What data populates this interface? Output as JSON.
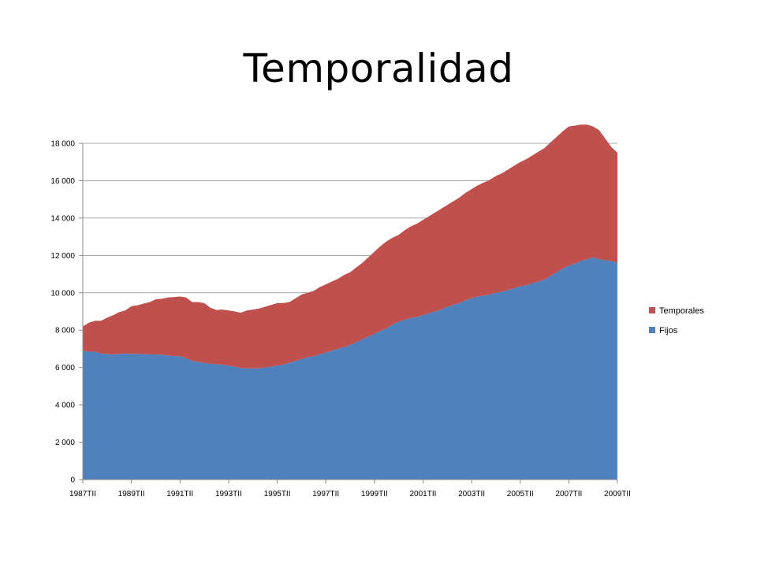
{
  "slide": {
    "title": "Temporalidad"
  },
  "chart_data": {
    "type": "area",
    "stacked": true,
    "grid": true,
    "legend_position": "right",
    "ylim": [
      0,
      18000
    ],
    "yticks": [
      0,
      2000,
      4000,
      6000,
      8000,
      10000,
      12000,
      14000,
      16000,
      18000
    ],
    "ytick_labels": [
      "0",
      "2 000",
      "4 000",
      "6 000",
      "8 000",
      "10 000",
      "12 000",
      "14 000",
      "16 000",
      "18 000"
    ],
    "xtick_labels": [
      "1987TII",
      "1989TII",
      "1991TII",
      "1993TII",
      "1995TII",
      "1997TII",
      "1999TII",
      "2001TII",
      "2003TII",
      "2005TII",
      "2007TII",
      "2009TII"
    ],
    "x": [
      "1987TII",
      "1987TIII",
      "1987TIV",
      "1988TI",
      "1988TII",
      "1988TIII",
      "1988TIV",
      "1989TI",
      "1989TII",
      "1989TIII",
      "1989TIV",
      "1990TI",
      "1990TII",
      "1990TIII",
      "1990TIV",
      "1991TI",
      "1991TII",
      "1991TIII",
      "1991TIV",
      "1992TI",
      "1992TII",
      "1992TIII",
      "1992TIV",
      "1993TI",
      "1993TII",
      "1993TIII",
      "1993TIV",
      "1994TI",
      "1994TII",
      "1994TIII",
      "1994TIV",
      "1995TI",
      "1995TII",
      "1995TIII",
      "1995TIV",
      "1996TI",
      "1996TII",
      "1996TIII",
      "1996TIV",
      "1997TI",
      "1997TII",
      "1997TIII",
      "1997TIV",
      "1998TI",
      "1998TII",
      "1998TIII",
      "1998TIV",
      "1999TI",
      "1999TII",
      "1999TIII",
      "1999TIV",
      "2000TI",
      "2000TII",
      "2000TIII",
      "2000TIV",
      "2001TI",
      "2001TII",
      "2001TIII",
      "2001TIV",
      "2002TI",
      "2002TII",
      "2002TIII",
      "2002TIV",
      "2003TI",
      "2003TII",
      "2003TIII",
      "2003TIV",
      "2004TI",
      "2004TII",
      "2004TIII",
      "2004TIV",
      "2005TI",
      "2005TII",
      "2005TIII",
      "2005TIV",
      "2006TI",
      "2006TII",
      "2006TIII",
      "2006TIV",
      "2007TI",
      "2007TII",
      "2007TIII",
      "2007TIV",
      "2008TI",
      "2008TII",
      "2008TIII",
      "2008TIV",
      "2009TI",
      "2009TII"
    ],
    "series": [
      {
        "name": "Fijos",
        "color": "#4F81BD",
        "values": [
          6900,
          6850,
          6850,
          6750,
          6720,
          6700,
          6720,
          6750,
          6730,
          6730,
          6720,
          6700,
          6700,
          6680,
          6650,
          6620,
          6600,
          6500,
          6350,
          6300,
          6250,
          6200,
          6180,
          6150,
          6100,
          6050,
          5980,
          5950,
          5950,
          5960,
          6000,
          6050,
          6100,
          6150,
          6250,
          6350,
          6450,
          6550,
          6600,
          6700,
          6800,
          6900,
          7000,
          7100,
          7200,
          7350,
          7500,
          7650,
          7800,
          7950,
          8100,
          8300,
          8450,
          8550,
          8650,
          8700,
          8800,
          8900,
          9000,
          9100,
          9250,
          9350,
          9450,
          9600,
          9700,
          9800,
          9850,
          9900,
          10000,
          10050,
          10150,
          10250,
          10350,
          10400,
          10500,
          10600,
          10700,
          10900,
          11100,
          11300,
          11450,
          11550,
          11700,
          11800,
          11900,
          11800,
          11750,
          11700,
          11600
        ]
      },
      {
        "name": "Temporales",
        "color": "#C0504D",
        "values": [
          1300,
          1550,
          1650,
          1750,
          1950,
          2100,
          2250,
          2300,
          2550,
          2600,
          2700,
          2800,
          2950,
          3000,
          3100,
          3150,
          3200,
          3250,
          3150,
          3200,
          3200,
          3000,
          2900,
          2950,
          2950,
          2950,
          2950,
          3100,
          3150,
          3200,
          3250,
          3300,
          3350,
          3300,
          3250,
          3350,
          3450,
          3450,
          3500,
          3600,
          3650,
          3700,
          3750,
          3850,
          3900,
          4000,
          4100,
          4250,
          4400,
          4550,
          4650,
          4650,
          4650,
          4800,
          4900,
          5000,
          5100,
          5200,
          5300,
          5400,
          5450,
          5550,
          5650,
          5750,
          5850,
          5950,
          6050,
          6150,
          6250,
          6350,
          6450,
          6550,
          6650,
          6750,
          6850,
          6950,
          7050,
          7150,
          7250,
          7350,
          7450,
          7400,
          7300,
          7200,
          7000,
          6900,
          6500,
          6100,
          5900
        ]
      }
    ]
  }
}
